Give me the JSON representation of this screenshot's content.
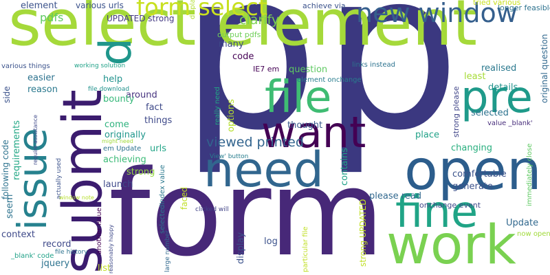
{
  "palette": {
    "background": "#ffffff",
    "purple_dark": "#440154",
    "indigo": "#3b3880",
    "blue": "#2c5d8c",
    "teal": "#26818e",
    "green_teal": "#20a486",
    "green": "#3fbc73",
    "lime": "#a5d93a",
    "yellow_green": "#c8e020"
  },
  "words": [
    {
      "text": "p",
      "color": "#3b3880"
    },
    {
      "text": "p",
      "color": "#3b3880"
    },
    {
      "text": "form",
      "color": "#472878"
    },
    {
      "text": "select element",
      "color": "#a5d93a"
    },
    {
      "text": "open",
      "color": "#2c5d8c"
    },
    {
      "text": "submit",
      "color": "#3b1c6e"
    },
    {
      "text": "need",
      "color": "#31668e"
    },
    {
      "text": "work",
      "color": "#7ad151"
    },
    {
      "text": "want",
      "color": "#440154"
    },
    {
      "text": "fine",
      "color": "#20a486"
    },
    {
      "text": "issue",
      "color": "#26818e"
    },
    {
      "text": "file",
      "color": "#3fbc73"
    },
    {
      "text": "pre",
      "color": "#1f9a8a"
    },
    {
      "text": "p",
      "color": "#1f968b"
    },
    {
      "text": "new window",
      "color": "#355f8d"
    },
    {
      "text": "form select",
      "color": "#c8e020"
    },
    {
      "text": "viewed printed",
      "color": "#32648e"
    },
    {
      "text": "clarify",
      "color": "#7ad151"
    },
    {
      "text": "pdfs",
      "color": "#5ec962"
    },
    {
      "text": "element",
      "color": "#3b528b"
    },
    {
      "text": "various urls",
      "color": "#3b528b"
    },
    {
      "text": "UPDATED strong",
      "color": "#443983"
    },
    {
      "text": "displaying links",
      "color": "#b0dd2f"
    },
    {
      "text": "achieve via",
      "color": "#3b528b"
    },
    {
      "text": "tried various",
      "color": "#c8e020"
    },
    {
      "text": "longer feasible",
      "color": "#2c728e"
    },
    {
      "text": "original question",
      "color": "#31688e"
    },
    {
      "text": "really need",
      "color": "#22a785"
    },
    {
      "text": "options",
      "color": "#b5de2b"
    },
    {
      "text": "output pdfs",
      "color": "#6ece58"
    },
    {
      "text": "many",
      "color": "#3e4989"
    },
    {
      "text": "code",
      "color": "#440154"
    },
    {
      "text": "question",
      "color": "#5ec962"
    },
    {
      "text": "realised",
      "color": "#2a788e"
    },
    {
      "text": "various things",
      "color": "#3b528b"
    },
    {
      "text": "working solution",
      "color": "#1fa187"
    },
    {
      "text": "IE7 em",
      "color": "#440154"
    },
    {
      "text": "links instead",
      "color": "#2c728e"
    },
    {
      "text": "easier",
      "color": "#2c728e"
    },
    {
      "text": "help",
      "color": "#20928c"
    },
    {
      "text": "least",
      "color": "#a5db36"
    },
    {
      "text": "side",
      "color": "#3b528b"
    },
    {
      "text": "reason",
      "color": "#2a788e"
    },
    {
      "text": "file download",
      "color": "#20928c"
    },
    {
      "text": "around",
      "color": "#46337f"
    },
    {
      "text": "element onchange",
      "color": "#287d8e"
    },
    {
      "text": "strong please",
      "color": "#404588"
    },
    {
      "text": "details",
      "color": "#20928c"
    },
    {
      "text": "bounty",
      "color": "#35b779"
    },
    {
      "text": "fact",
      "color": "#3e4989"
    },
    {
      "text": "things",
      "color": "#3e4989"
    },
    {
      "text": "come",
      "color": "#2db27d"
    },
    {
      "text": "thought",
      "color": "#38598c"
    },
    {
      "text": "selected",
      "color": "#2c728e"
    },
    {
      "text": "value _blank'",
      "color": "#472d7b"
    },
    {
      "text": "immediately close",
      "color": "#5ec962"
    },
    {
      "text": "originally",
      "color": "#1f968b"
    },
    {
      "text": "place",
      "color": "#1fa187"
    },
    {
      "text": "requirements",
      "color": "#22a785"
    },
    {
      "text": "urls",
      "color": "#20a486"
    },
    {
      "text": "achieving",
      "color": "#3aba76"
    },
    {
      "text": "changing",
      "color": "#29af7f"
    },
    {
      "text": "might need",
      "color": "#9fda3a"
    },
    {
      "text": "em Update",
      "color": "#2c728e"
    },
    {
      "text": "require assistance",
      "color": "#3e4989"
    },
    {
      "text": "strong",
      "color": "#95d840"
    },
    {
      "text": "following code",
      "color": "#2c728e"
    },
    {
      "text": "contains",
      "color": "#1fa187"
    },
    {
      "text": "launch",
      "color": "#3e4989"
    },
    {
      "text": "actually used",
      "color": "#3b528b"
    },
    {
      "text": "View' button",
      "color": "#287d8e"
    },
    {
      "text": "selectedIndex value",
      "color": "#2a788e"
    },
    {
      "text": "generate",
      "color": "#3b528b"
    },
    {
      "text": "comfortable",
      "color": "#3b528b"
    },
    {
      "text": "window note",
      "color": "#b5de2b"
    },
    {
      "text": "faced",
      "color": "#c0df25"
    },
    {
      "text": "please read",
      "color": "#31688e"
    },
    {
      "text": "seem",
      "color": "#2c728e"
    },
    {
      "text": "another issue",
      "color": "#440154"
    },
    {
      "text": "onchange event",
      "color": "#3e4989"
    },
    {
      "text": "Update",
      "color": "#31688e"
    },
    {
      "text": "strong UPDATED",
      "color": "#c0df25"
    },
    {
      "text": "clicked will",
      "color": "#414487"
    },
    {
      "text": "record",
      "color": "#3e4989"
    },
    {
      "text": "context",
      "color": "#3e4989"
    },
    {
      "text": "display",
      "color": "#3b528b"
    },
    {
      "text": "log",
      "color": "#3b528b"
    },
    {
      "text": "now opened",
      "color": "#a0da39"
    },
    {
      "text": "file history",
      "color": "#2c728e"
    },
    {
      "text": "_blank' code",
      "color": "#1fa187"
    },
    {
      "text": "large number",
      "color": "#31688e"
    },
    {
      "text": "jquery",
      "color": "#2c728e"
    },
    {
      "text": "list",
      "color": "#c0df25"
    },
    {
      "text": "particular file",
      "color": "#c0df25"
    },
    {
      "text": "reasonably happy",
      "color": "#3e4989"
    }
  ]
}
